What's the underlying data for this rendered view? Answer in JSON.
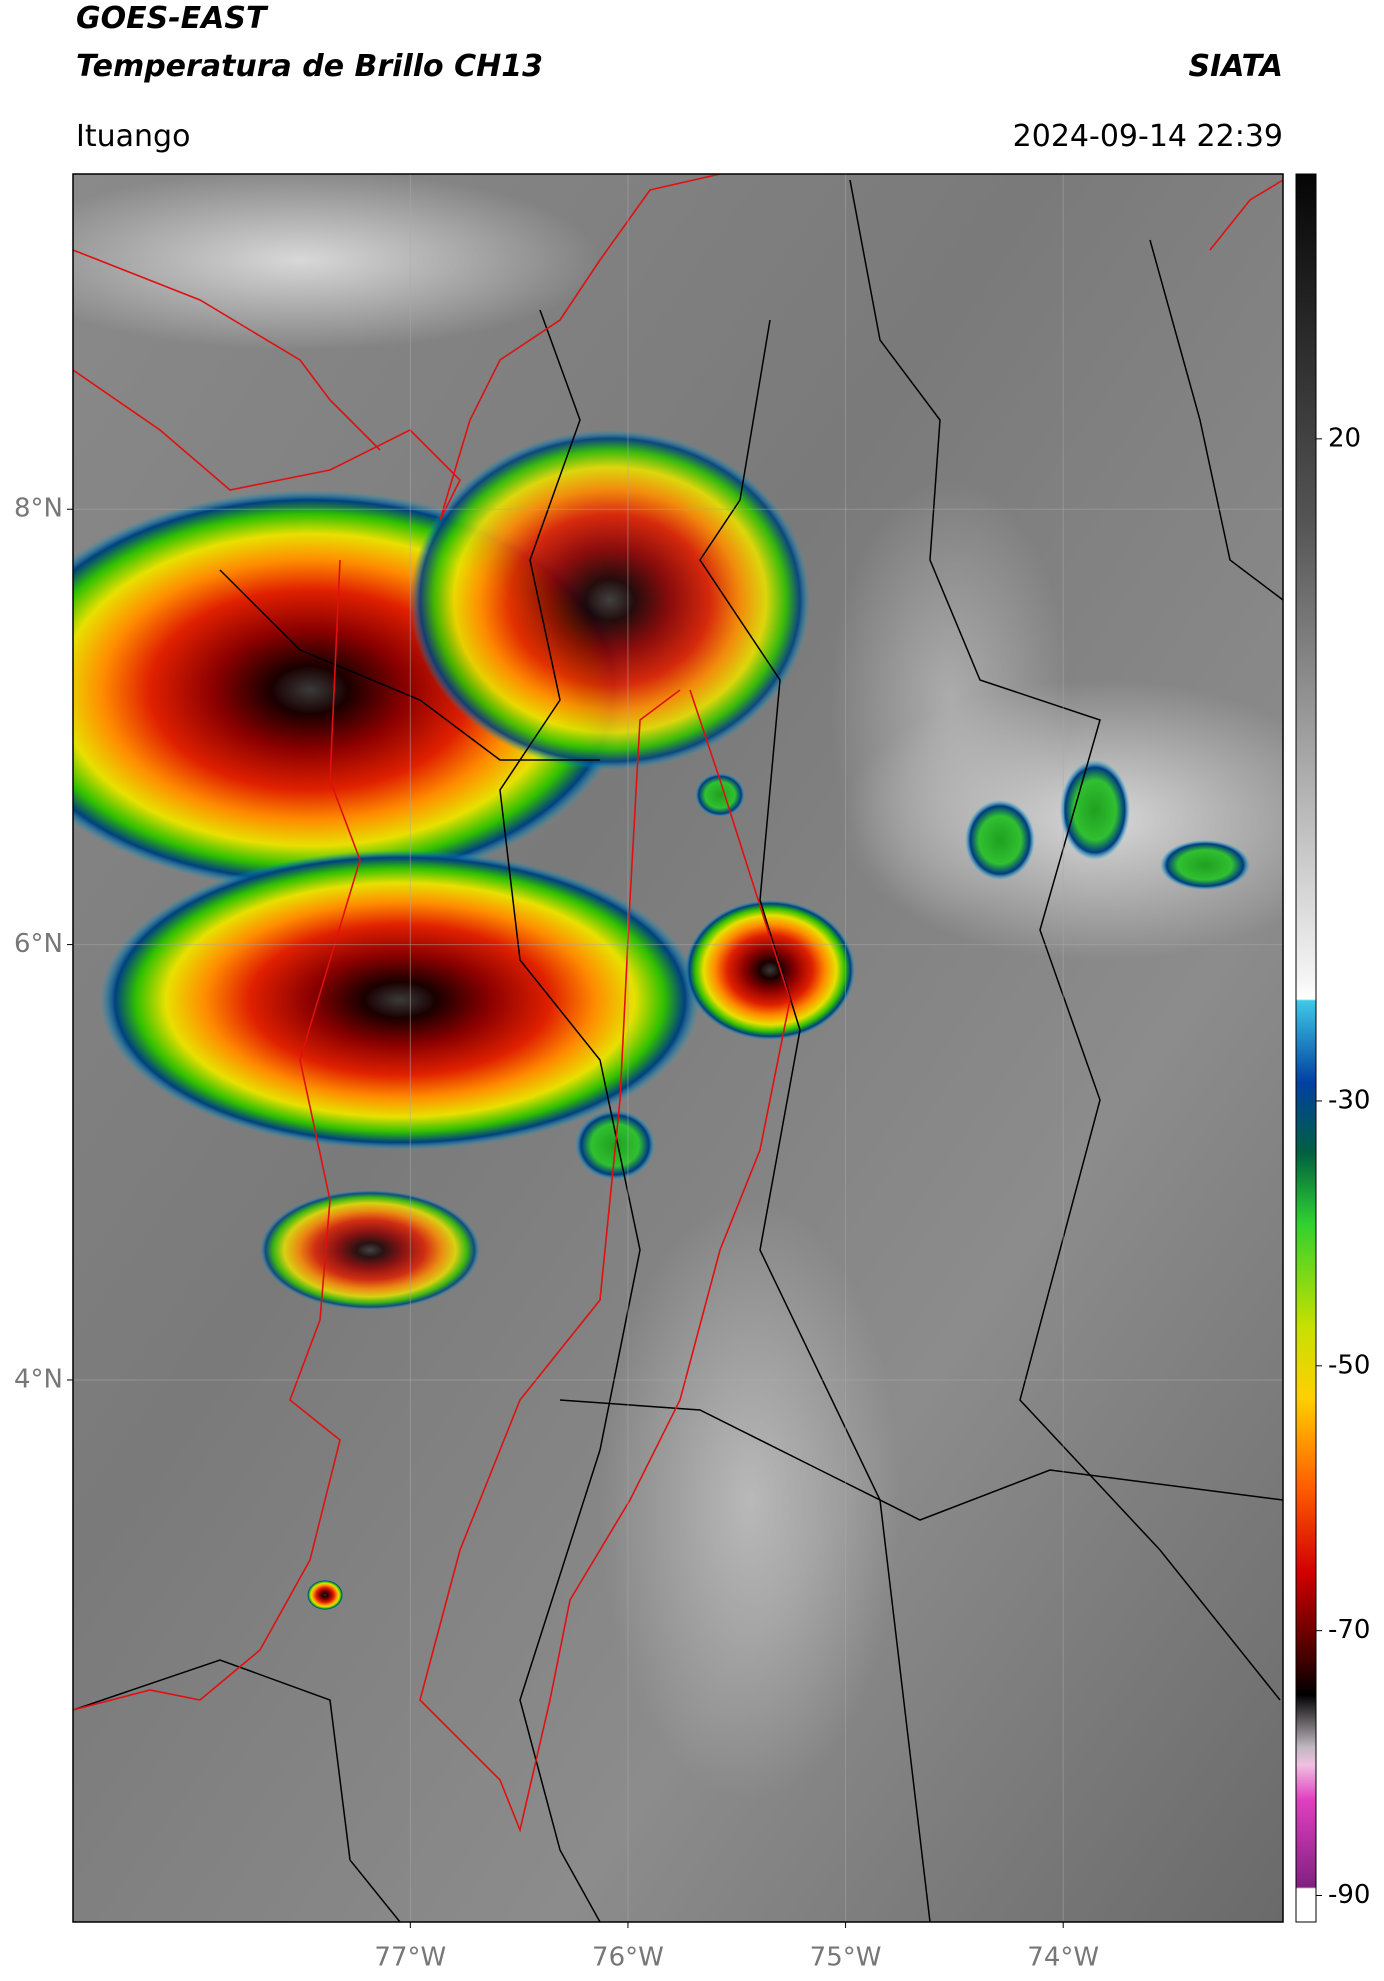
{
  "header": {
    "title": "GOES-EAST",
    "subtitle": "Temperatura de Brillo CH13",
    "agency": "SIATA",
    "location": "Ituango",
    "datetime": "2024-09-14 22:39"
  },
  "chart_data": {
    "type": "map",
    "xlim": [
      -78.55,
      -72.99
    ],
    "ylim": [
      1.51,
      9.54
    ],
    "xticks": [
      {
        "value": -77,
        "label": "77°W"
      },
      {
        "value": -76,
        "label": "76°W"
      },
      {
        "value": -75,
        "label": "75°W"
      },
      {
        "value": -74,
        "label": "74°W"
      }
    ],
    "yticks": [
      {
        "value": 8,
        "label": "8°N"
      },
      {
        "value": 6,
        "label": "6°N"
      },
      {
        "value": 4,
        "label": "4°N"
      }
    ],
    "grid": true,
    "colorbar": {
      "clim": [
        -92,
        40
      ],
      "ticks": [
        20,
        -30,
        -50,
        -70,
        -90
      ]
    }
  }
}
